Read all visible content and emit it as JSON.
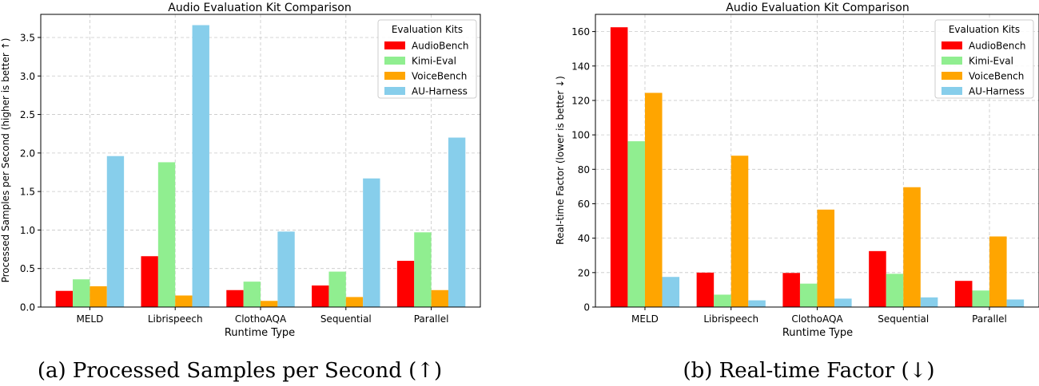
{
  "chart_data": [
    {
      "type": "bar",
      "title": "Audio Evaluation Kit Comparison",
      "xlabel": "Runtime Type",
      "ylabel": "Processed Samples per Second (higher is better ↑)",
      "categories": [
        "MELD",
        "Librispeech",
        "ClothoAQA",
        "Sequential",
        "Parallel"
      ],
      "ylim": [
        0,
        3.8
      ],
      "yticks": [
        0.0,
        0.5,
        1.0,
        1.5,
        2.0,
        2.5,
        3.0,
        3.5
      ],
      "ytick_labels": [
        "0.0",
        "0.5",
        "1.0",
        "1.5",
        "2.0",
        "2.5",
        "3.0",
        "3.5"
      ],
      "grid": true,
      "legend_title": "Evaluation Kits",
      "legend_position": "top-right",
      "series": [
        {
          "name": "AudioBench",
          "color": "#ff0000",
          "values": [
            0.21,
            0.66,
            0.22,
            0.28,
            0.6
          ]
        },
        {
          "name": "Kimi-Eval",
          "color": "#90ee90",
          "values": [
            0.36,
            1.88,
            0.33,
            0.46,
            0.97
          ]
        },
        {
          "name": "VoiceBench",
          "color": "#ffa500",
          "values": [
            0.27,
            0.15,
            0.08,
            0.13,
            0.22
          ]
        },
        {
          "name": "AU-Harness",
          "color": "#87ceeb",
          "values": [
            1.96,
            3.66,
            0.98,
            1.67,
            2.2
          ]
        }
      ],
      "caption": "(a) Processed Samples per Second (↑)"
    },
    {
      "type": "bar",
      "title": "Audio Evaluation Kit Comparison",
      "xlabel": "Runtime Type",
      "ylabel": "Real-time Factor (lower is better ↓)",
      "categories": [
        "MELD",
        "Librispeech",
        "ClothoAQA",
        "Sequential",
        "Parallel"
      ],
      "ylim": [
        0,
        170
      ],
      "yticks": [
        0,
        20,
        40,
        60,
        80,
        100,
        120,
        140,
        160
      ],
      "ytick_labels": [
        "0",
        "20",
        "40",
        "60",
        "80",
        "100",
        "120",
        "140",
        "160"
      ],
      "grid": true,
      "legend_title": "Evaluation Kits",
      "legend_position": "top-right",
      "series": [
        {
          "name": "AudioBench",
          "color": "#ff0000",
          "values": [
            162.5,
            20.0,
            19.8,
            32.5,
            15.2
          ]
        },
        {
          "name": "Kimi-Eval",
          "color": "#90ee90",
          "values": [
            96.3,
            7.2,
            13.6,
            19.3,
            9.6
          ]
        },
        {
          "name": "VoiceBench",
          "color": "#ffa500",
          "values": [
            124.4,
            87.9,
            56.6,
            69.6,
            41.0
          ]
        },
        {
          "name": "AU-Harness",
          "color": "#87ceeb",
          "values": [
            17.5,
            3.9,
            4.9,
            5.6,
            4.4
          ]
        }
      ],
      "caption": "(b) Real-time Factor (↓)"
    }
  ]
}
